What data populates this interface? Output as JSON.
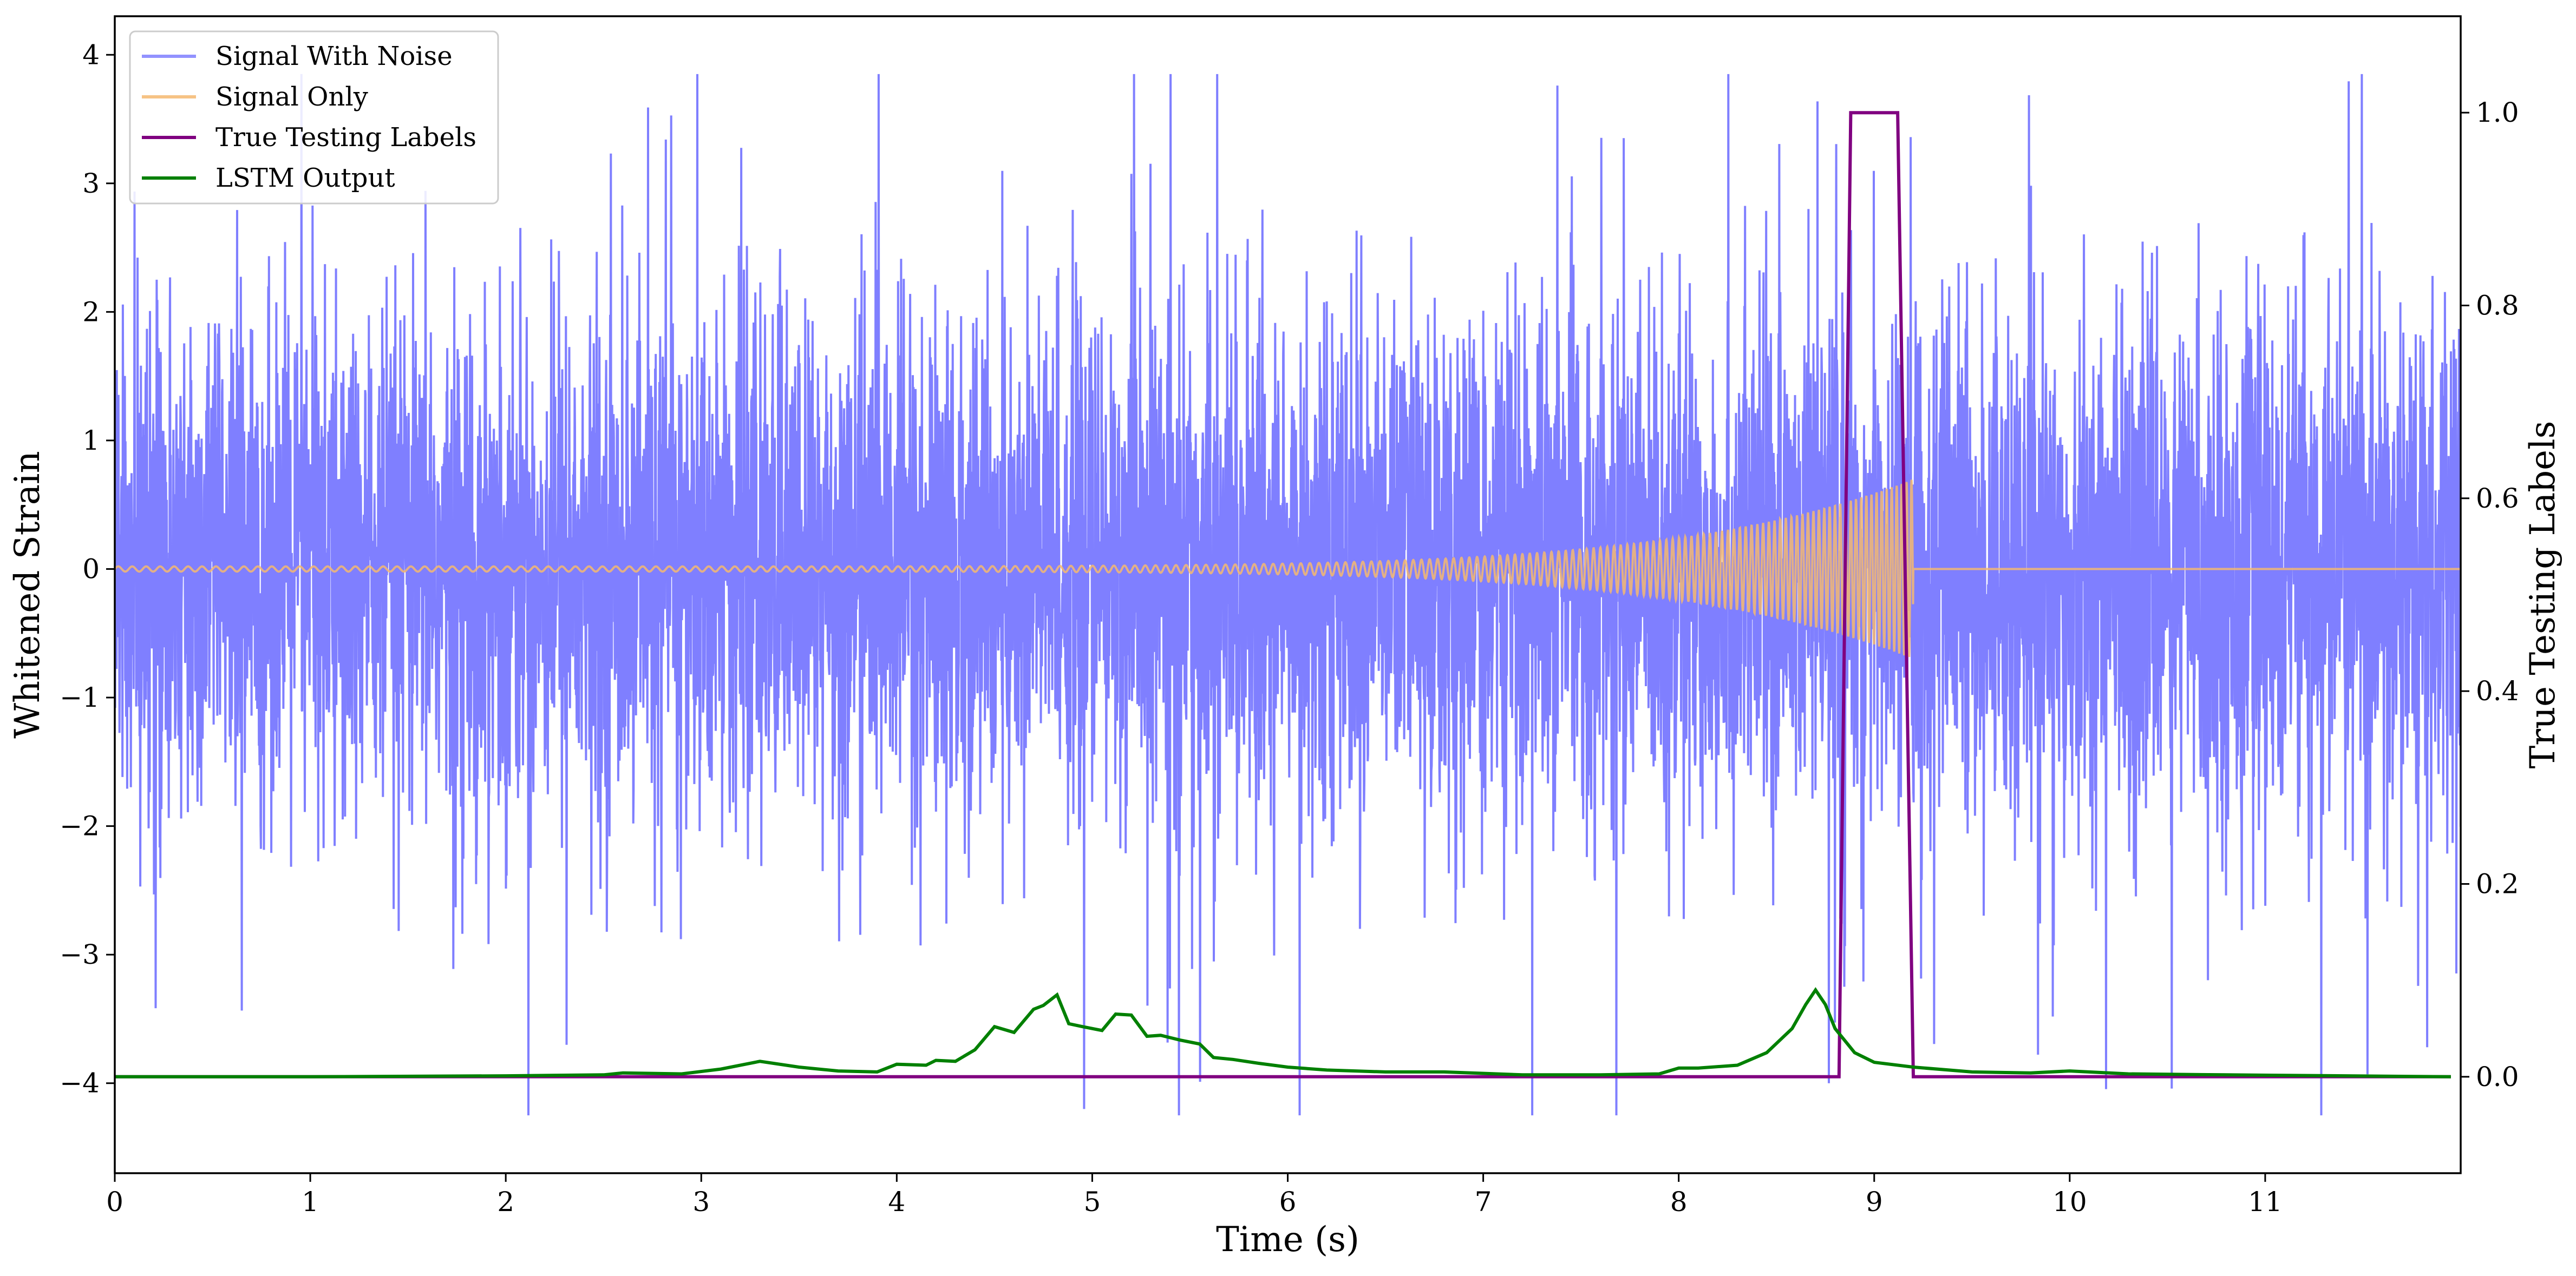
{
  "chart_data": {
    "type": "line",
    "title": "",
    "xlabel": "Time (s)",
    "ylabel": "Whitened Strain",
    "ylabel_right": "True Testing Labels",
    "xlim": [
      0,
      12
    ],
    "ylim": [
      -4.7,
      4.3
    ],
    "ylim_right": [
      -0.1,
      1.1
    ],
    "x_ticks": [
      0,
      1,
      2,
      3,
      4,
      5,
      6,
      7,
      8,
      9,
      10,
      11
    ],
    "x_tick_labels": [
      "0",
      "1",
      "2",
      "3",
      "4",
      "5",
      "6",
      "7",
      "8",
      "9",
      "10",
      "11"
    ],
    "y_ticks": [
      -4,
      -3,
      -2,
      -1,
      0,
      1,
      2,
      3,
      4
    ],
    "y_tick_labels": [
      "−4",
      "−3",
      "−2",
      "−1",
      "0",
      "1",
      "2",
      "3",
      "4"
    ],
    "y_right_ticks": [
      0.0,
      0.2,
      0.4,
      0.6,
      0.8,
      1.0
    ],
    "y_right_tick_labels": [
      "0.0",
      "0.2",
      "0.4",
      "0.6",
      "0.8",
      "1.0"
    ],
    "grid": false,
    "legend_position": "top-left",
    "series": [
      {
        "name": "Signal With Noise",
        "color": "#7f7fff",
        "axis": "left",
        "description_values": {
          "approx_std": 0.75,
          "min": -4.25,
          "max": 3.85
        },
        "x_range": [
          0,
          12
        ]
      },
      {
        "name": "Signal Only",
        "color": "#f5b870",
        "axis": "left",
        "x_range": [
          0,
          12
        ],
        "chirp_end": 9.2,
        "amplitude_start": 0.02,
        "amplitude_end": 0.7
      },
      {
        "name": "True Testing Labels",
        "color": "#800080",
        "axis": "right",
        "x": [
          0,
          8.82,
          8.88,
          9.12,
          9.2,
          11.95
        ],
        "y": [
          0,
          0,
          1,
          1,
          0,
          0
        ]
      },
      {
        "name": "LSTM Output",
        "color": "#008000",
        "axis": "right",
        "x": [
          0,
          1.0,
          2.0,
          2.5,
          2.6,
          2.9,
          3.1,
          3.3,
          3.5,
          3.7,
          3.9,
          4.0,
          4.15,
          4.2,
          4.3,
          4.4,
          4.5,
          4.6,
          4.7,
          4.75,
          4.82,
          4.88,
          4.95,
          5.05,
          5.12,
          5.2,
          5.28,
          5.35,
          5.45,
          5.55,
          5.62,
          5.72,
          5.85,
          6.0,
          6.2,
          6.5,
          6.8,
          7.2,
          7.6,
          7.9,
          8.0,
          8.1,
          8.3,
          8.45,
          8.58,
          8.65,
          8.7,
          8.75,
          8.8,
          8.9,
          9.0,
          9.2,
          9.5,
          9.8,
          10.0,
          10.3,
          10.8,
          11.95
        ],
        "y": [
          0,
          0.0,
          0.001,
          0.002,
          0.004,
          0.003,
          0.008,
          0.016,
          0.01,
          0.006,
          0.005,
          0.013,
          0.012,
          0.017,
          0.016,
          0.028,
          0.052,
          0.046,
          0.07,
          0.074,
          0.085,
          0.055,
          0.052,
          0.048,
          0.065,
          0.064,
          0.042,
          0.043,
          0.038,
          0.034,
          0.02,
          0.018,
          0.014,
          0.01,
          0.007,
          0.005,
          0.005,
          0.002,
          0.002,
          0.003,
          0.009,
          0.009,
          0.012,
          0.025,
          0.05,
          0.075,
          0.09,
          0.075,
          0.05,
          0.025,
          0.015,
          0.01,
          0.005,
          0.004,
          0.006,
          0.003,
          0.002,
          0.0
        ]
      }
    ],
    "legend_entries": [
      "Signal With Noise",
      "Signal Only",
      "True Testing Labels",
      "LSTM Output"
    ]
  }
}
